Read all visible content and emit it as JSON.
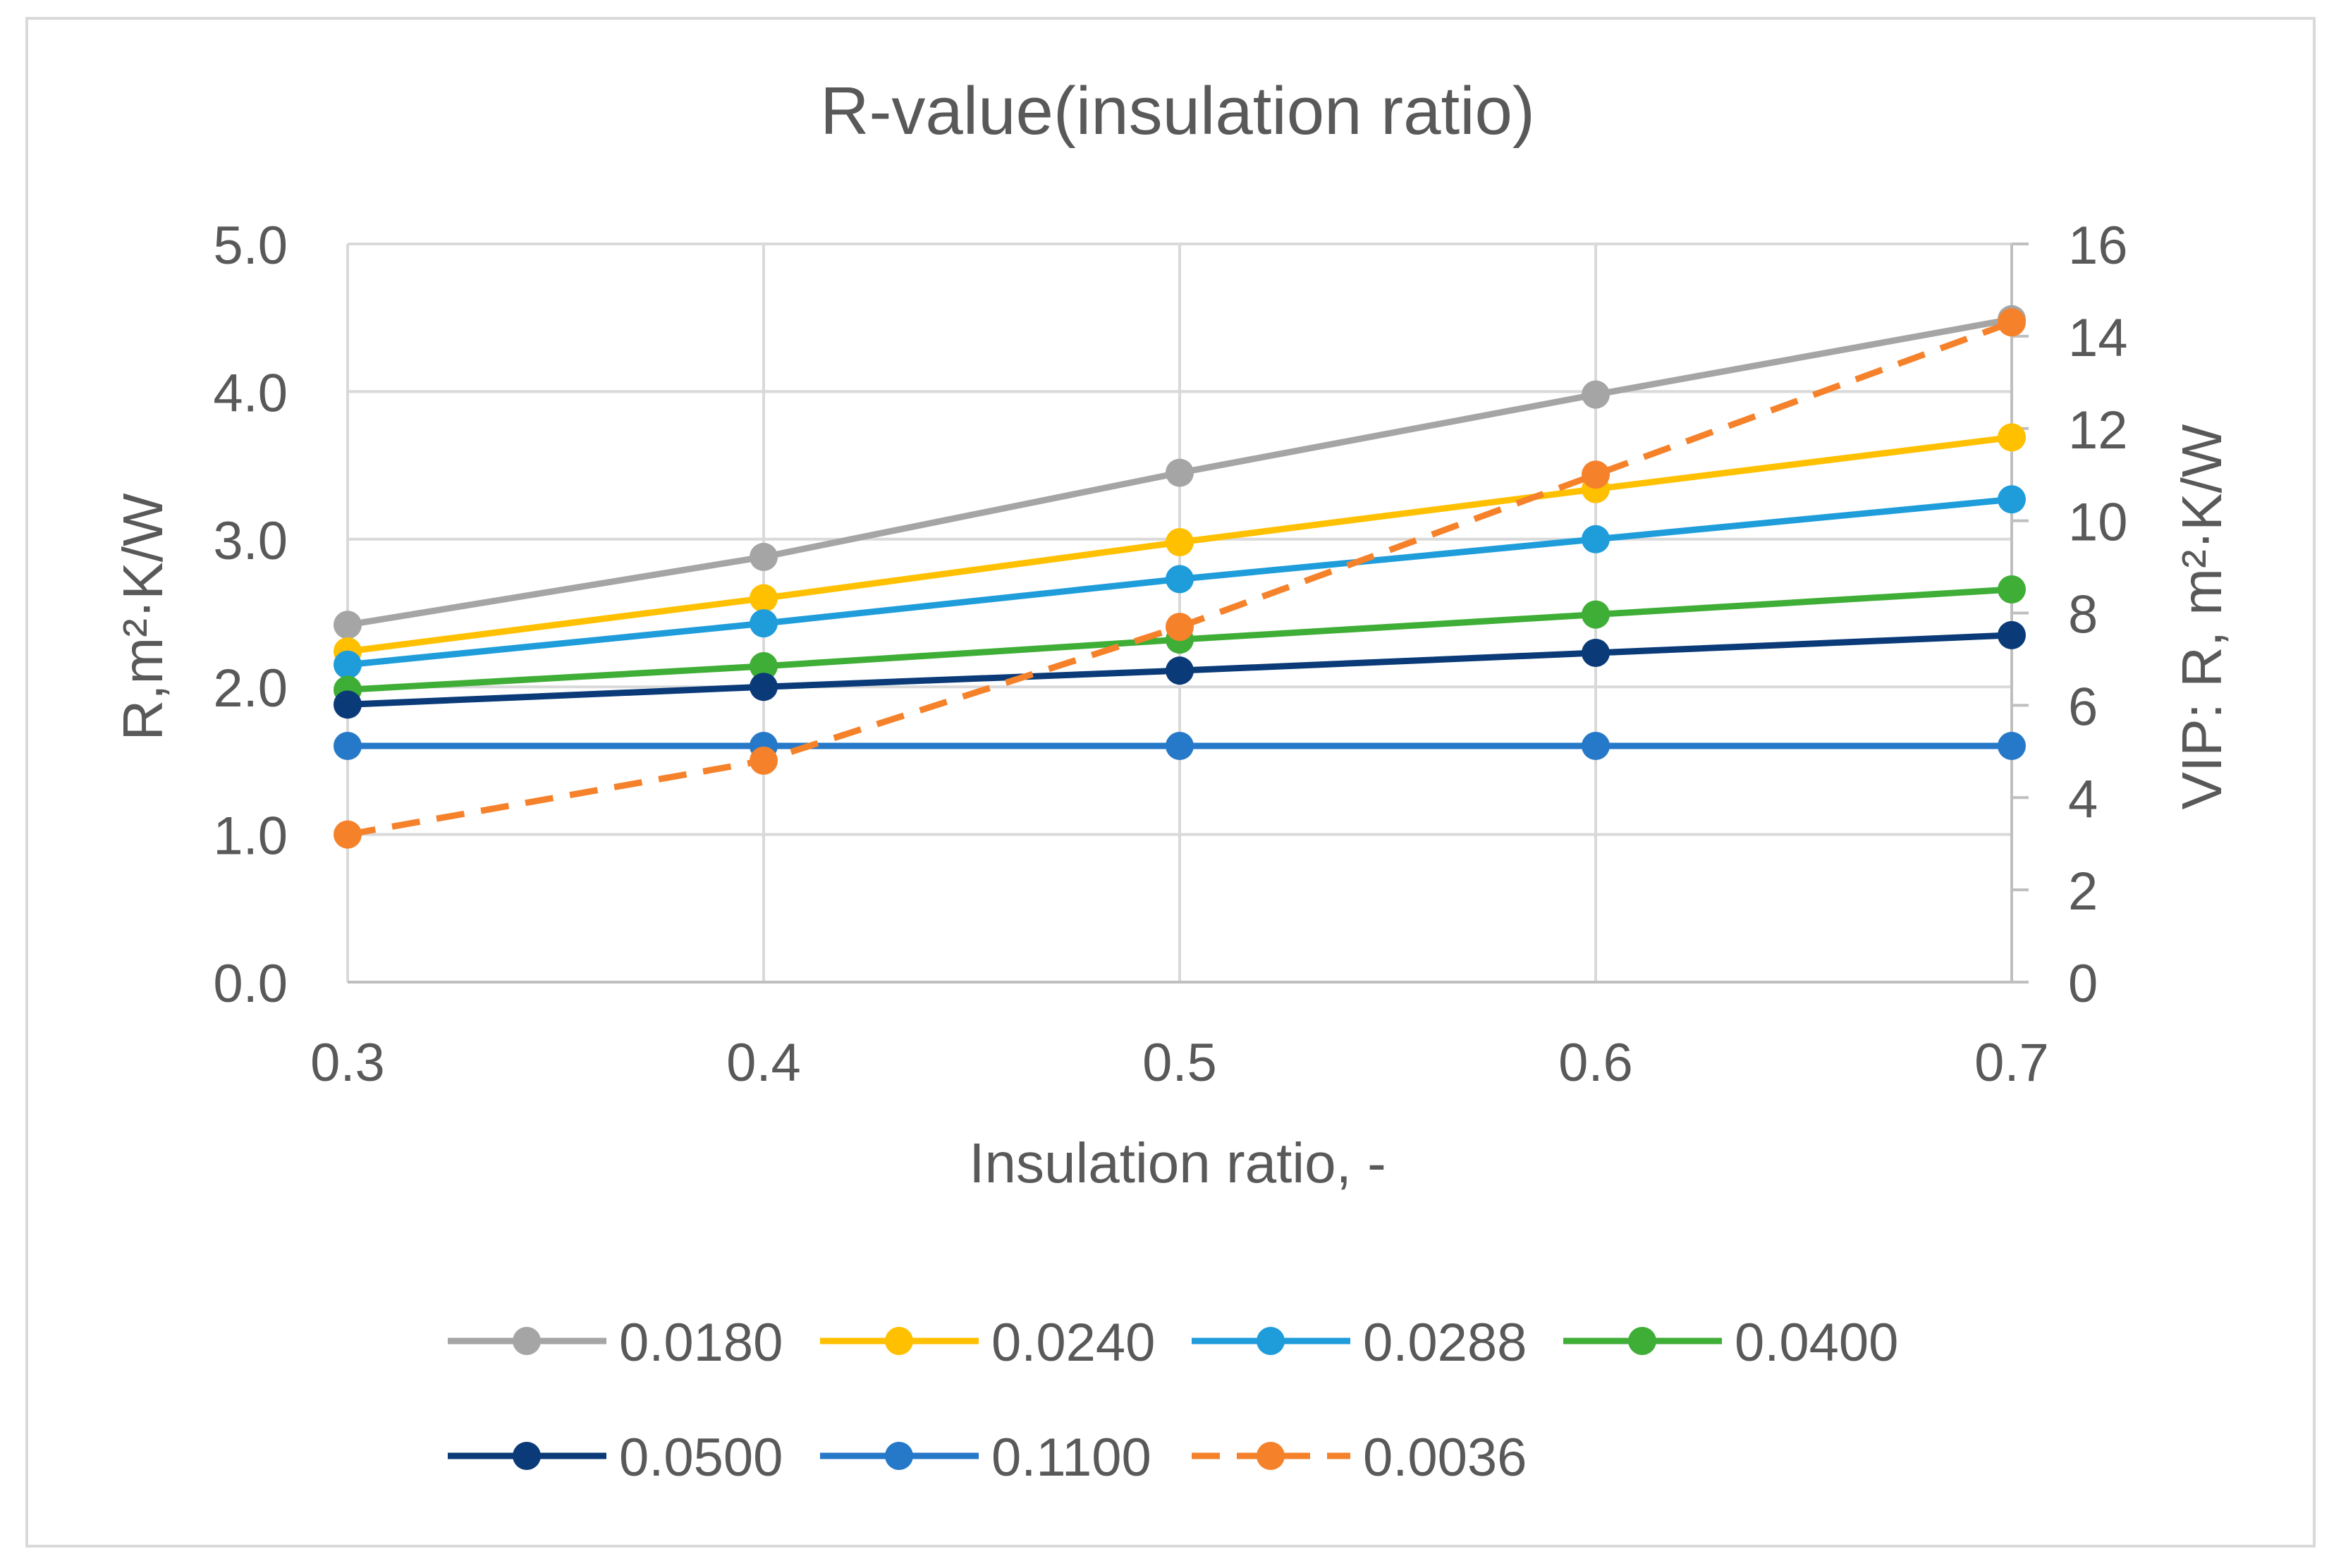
{
  "chart_data": {
    "type": "line",
    "title": "R-value(insulation ratio)",
    "xlabel": "Insulation ratio, -",
    "ylabel": "R,m²·K/W",
    "y2label": "VIP: R, m²·K/W",
    "x": [
      0.3,
      0.4,
      0.5,
      0.6,
      0.7
    ],
    "x_tick_labels": [
      "0.3",
      "0.4",
      "0.5",
      "0.6",
      "0.7"
    ],
    "xlim": [
      0.3,
      0.7
    ],
    "ylim": [
      0.0,
      5.0
    ],
    "y_tick_labels": [
      "0.0",
      "1.0",
      "2.0",
      "3.0",
      "4.0",
      "5.0"
    ],
    "y2lim": [
      0,
      16
    ],
    "y2_tick_labels": [
      "0",
      "2",
      "4",
      "6",
      "8",
      "10",
      "12",
      "14",
      "16"
    ],
    "grid": true,
    "legend_position": "bottom",
    "series": [
      {
        "name": "0.0180",
        "axis": "left",
        "color": "#a5a5a5",
        "dashed": false,
        "values": [
          2.42,
          2.88,
          3.45,
          3.98,
          4.49
        ]
      },
      {
        "name": "0.0240",
        "axis": "left",
        "color": "#ffc000",
        "dashed": false,
        "values": [
          2.24,
          2.6,
          2.98,
          3.34,
          3.69
        ]
      },
      {
        "name": "0.0288",
        "axis": "left",
        "color": "#1f9ddb",
        "dashed": false,
        "values": [
          2.15,
          2.43,
          2.73,
          3.0,
          3.27
        ]
      },
      {
        "name": "0.0400",
        "axis": "left",
        "color": "#3fae36",
        "dashed": false,
        "values": [
          1.98,
          2.14,
          2.32,
          2.49,
          2.66
        ]
      },
      {
        "name": "0.0500",
        "axis": "left",
        "color": "#0a3a78",
        "dashed": false,
        "values": [
          1.88,
          2.0,
          2.11,
          2.23,
          2.35
        ]
      },
      {
        "name": "0.1100",
        "axis": "left",
        "color": "#2678c8",
        "dashed": false,
        "values": [
          1.6,
          1.6,
          1.6,
          1.6,
          1.6
        ]
      },
      {
        "name": "0.0036",
        "axis": "right",
        "color": "#f5822a",
        "dashed": true,
        "values": [
          3.2,
          4.8,
          7.7,
          11.0,
          14.3
        ]
      }
    ]
  }
}
